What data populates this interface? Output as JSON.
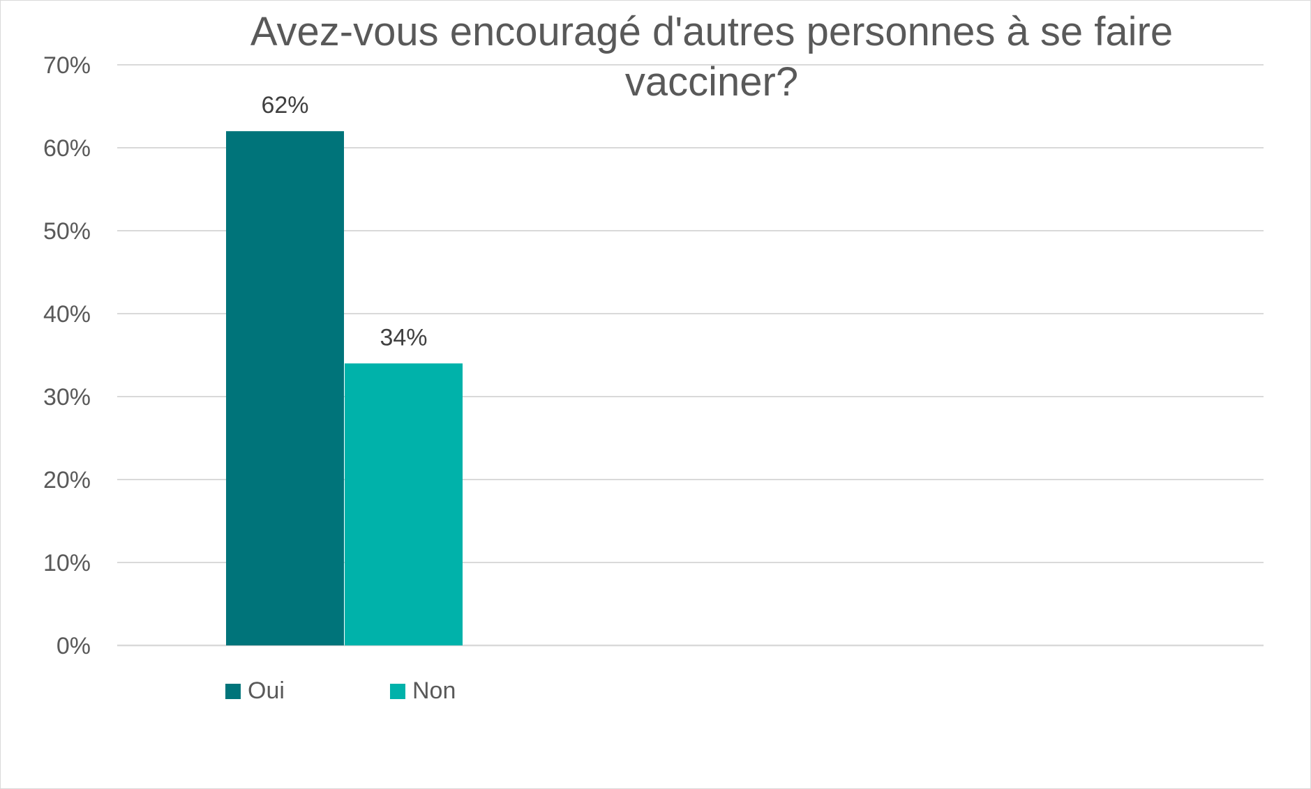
{
  "chart_data": {
    "type": "bar",
    "title": "Avez-vous encouragé d'autres personnes à se faire\nvacciner?",
    "xlabel": "",
    "ylabel": "",
    "ylim": [
      0,
      0.7
    ],
    "y_ticks": [
      "0%",
      "10%",
      "20%",
      "30%",
      "40%",
      "50%",
      "60%",
      "70%"
    ],
    "grid": true,
    "legend_position": "bottom-left",
    "series": [
      {
        "name": "Oui",
        "value": 0.62,
        "label": "62%",
        "color": "#00747A"
      },
      {
        "name": "Non",
        "value": 0.34,
        "label": "34%",
        "color": "#00B2AA"
      }
    ]
  }
}
